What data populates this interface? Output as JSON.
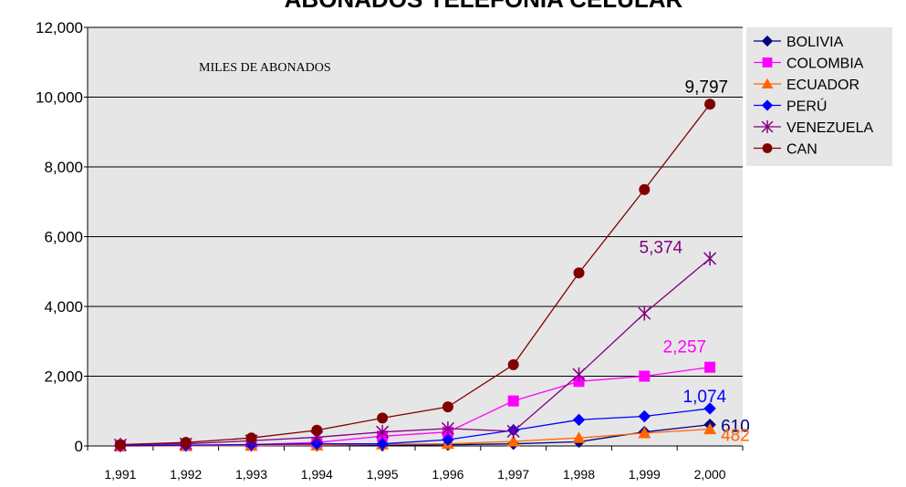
{
  "chart_data": {
    "type": "line",
    "title": "ABONADOS TELEFONIA CELULAR",
    "annotation": "MILES DE ABONADOS",
    "x": [
      "1,991",
      "1,992",
      "1,993",
      "1,994",
      "1,995",
      "1,996",
      "1,997",
      "1,998",
      "1,999",
      "2,000"
    ],
    "ylim": [
      0,
      12000
    ],
    "yticks": [
      "0",
      "2,000",
      "4,000",
      "6,000",
      "8,000",
      "10,000",
      "12,000"
    ],
    "grid": "horizontal",
    "legend_position": "right",
    "series": [
      {
        "name": "BOLIVIA",
        "color": "#000080",
        "marker": "diamond",
        "values": [
          0,
          5,
          10,
          15,
          15,
          35,
          60,
          120,
          400,
          610
        ],
        "last_label": "610"
      },
      {
        "name": "COLOMBIA",
        "color": "#FF00FF",
        "marker": "square",
        "values": [
          0,
          10,
          40,
          100,
          280,
          400,
          1290,
          1850,
          2000,
          2257
        ],
        "last_label": "2,257"
      },
      {
        "name": "ECUADOR",
        "color": "#FF6600",
        "marker": "triangle",
        "values": [
          0,
          5,
          10,
          20,
          50,
          60,
          130,
          230,
          370,
          482
        ],
        "last_label": "482"
      },
      {
        "name": "PERÚ",
        "color": "#0000FF",
        "marker": "diamond",
        "values": [
          10,
          20,
          40,
          60,
          60,
          180,
          450,
          750,
          850,
          1074
        ],
        "last_label": "1,074"
      },
      {
        "name": "VENEZUELA",
        "color": "#800080",
        "marker": "star",
        "values": [
          30,
          60,
          150,
          250,
          400,
          500,
          420,
          2050,
          3800,
          5374
        ],
        "last_label": "5,374"
      },
      {
        "name": "CAN",
        "color": "#800000",
        "marker": "circle",
        "values": [
          40,
          100,
          230,
          450,
          800,
          1120,
          2330,
          4960,
          7350,
          9797
        ],
        "last_label": "9,797"
      }
    ]
  }
}
